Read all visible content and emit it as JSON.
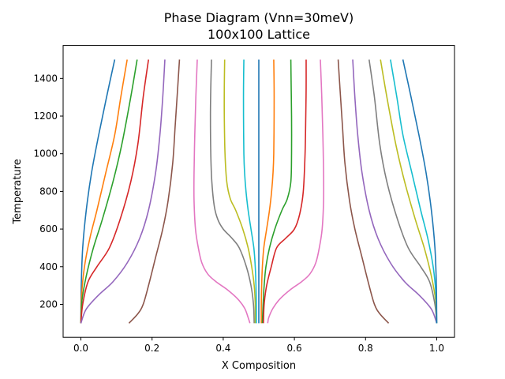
{
  "chart_data": {
    "type": "line",
    "title": "Phase Diagram (Vnn=30meV)",
    "subtitle": "100x100 Lattice",
    "xlabel": "X Composition",
    "ylabel": "Temperature",
    "xlim": [
      -0.05,
      1.05
    ],
    "ylim": [
      25,
      1575
    ],
    "xticks": [
      0.0,
      0.2,
      0.4,
      0.6,
      0.8,
      1.0
    ],
    "xtick_labels": [
      "0.0",
      "0.2",
      "0.4",
      "0.6",
      "0.8",
      "1.0"
    ],
    "yticks": [
      200,
      400,
      600,
      800,
      1000,
      1200,
      1400
    ],
    "ytick_labels": [
      "200",
      "400",
      "600",
      "800",
      "1000",
      "1200",
      "1400"
    ],
    "grid": false,
    "series": [
      {
        "color": "#1f77b4",
        "points": [
          [
            0.0,
            100
          ],
          [
            0.001,
            300
          ],
          [
            0.005,
            500
          ],
          [
            0.015,
            700
          ],
          [
            0.03,
            900
          ],
          [
            0.05,
            1100
          ],
          [
            0.072,
            1300
          ],
          [
            0.095,
            1500
          ]
        ]
      },
      {
        "color": "#ff7f0e",
        "points": [
          [
            0.0,
            100
          ],
          [
            0.002,
            250
          ],
          [
            0.01,
            400
          ],
          [
            0.025,
            550
          ],
          [
            0.045,
            700
          ],
          [
            0.07,
            900
          ],
          [
            0.095,
            1100
          ],
          [
            0.112,
            1300
          ],
          [
            0.13,
            1500
          ]
        ]
      },
      {
        "color": "#2ca02c",
        "points": [
          [
            0.0,
            100
          ],
          [
            0.003,
            220
          ],
          [
            0.015,
            350
          ],
          [
            0.035,
            500
          ],
          [
            0.06,
            650
          ],
          [
            0.09,
            850
          ],
          [
            0.115,
            1050
          ],
          [
            0.14,
            1300
          ],
          [
            0.158,
            1500
          ]
        ]
      },
      {
        "color": "#d62728",
        "points": [
          [
            0.0,
            100
          ],
          [
            0.005,
            200
          ],
          [
            0.02,
            320
          ],
          [
            0.045,
            400
          ],
          [
            0.08,
            500
          ],
          [
            0.11,
            650
          ],
          [
            0.14,
            850
          ],
          [
            0.16,
            1050
          ],
          [
            0.175,
            1300
          ],
          [
            0.19,
            1500
          ]
        ]
      },
      {
        "color": "#9467bd",
        "points": [
          [
            0.0,
            100
          ],
          [
            0.015,
            175
          ],
          [
            0.05,
            250
          ],
          [
            0.09,
            320
          ],
          [
            0.13,
            420
          ],
          [
            0.165,
            550
          ],
          [
            0.19,
            700
          ],
          [
            0.21,
            900
          ],
          [
            0.222,
            1100
          ],
          [
            0.23,
            1300
          ],
          [
            0.236,
            1500
          ]
        ]
      },
      {
        "color": "#8c564b",
        "points": [
          [
            0.135,
            100
          ],
          [
            0.16,
            150
          ],
          [
            0.175,
            200
          ],
          [
            0.19,
            300
          ],
          [
            0.21,
            450
          ],
          [
            0.23,
            600
          ],
          [
            0.245,
            750
          ],
          [
            0.258,
            950
          ],
          [
            0.265,
            1150
          ],
          [
            0.272,
            1350
          ],
          [
            0.277,
            1500
          ]
        ]
      },
      {
        "color": "#e377c2",
        "points": [
          [
            0.475,
            100
          ],
          [
            0.47,
            130
          ],
          [
            0.46,
            180
          ],
          [
            0.44,
            230
          ],
          [
            0.41,
            280
          ],
          [
            0.38,
            320
          ],
          [
            0.357,
            360
          ],
          [
            0.34,
            420
          ],
          [
            0.33,
            500
          ],
          [
            0.322,
            600
          ],
          [
            0.318,
            750
          ],
          [
            0.318,
            900
          ],
          [
            0.32,
            1100
          ],
          [
            0.323,
            1300
          ],
          [
            0.327,
            1500
          ]
        ]
      },
      {
        "color": "#7f7f7f",
        "points": [
          [
            0.487,
            100
          ],
          [
            0.485,
            200
          ],
          [
            0.478,
            300
          ],
          [
            0.465,
            400
          ],
          [
            0.445,
            500
          ],
          [
            0.425,
            550
          ],
          [
            0.4,
            600
          ],
          [
            0.385,
            650
          ],
          [
            0.375,
            720
          ],
          [
            0.368,
            850
          ],
          [
            0.365,
            1000
          ],
          [
            0.364,
            1200
          ],
          [
            0.365,
            1350
          ],
          [
            0.367,
            1500
          ]
        ]
      },
      {
        "color": "#bcbd22",
        "points": [
          [
            0.49,
            100
          ],
          [
            0.49,
            200
          ],
          [
            0.487,
            300
          ],
          [
            0.48,
            400
          ],
          [
            0.47,
            500
          ],
          [
            0.455,
            600
          ],
          [
            0.435,
            700
          ],
          [
            0.42,
            760
          ],
          [
            0.41,
            850
          ],
          [
            0.405,
            1000
          ],
          [
            0.403,
            1200
          ],
          [
            0.403,
            1350
          ],
          [
            0.404,
            1500
          ]
        ]
      },
      {
        "color": "#17becf",
        "points": [
          [
            0.493,
            100
          ],
          [
            0.493,
            200
          ],
          [
            0.492,
            300
          ],
          [
            0.49,
            400
          ],
          [
            0.486,
            500
          ],
          [
            0.478,
            600
          ],
          [
            0.47,
            700
          ],
          [
            0.464,
            800
          ],
          [
            0.46,
            900
          ],
          [
            0.458,
            1000
          ],
          [
            0.457,
            1200
          ],
          [
            0.457,
            1350
          ],
          [
            0.458,
            1500
          ]
        ]
      },
      {
        "color": "#1f77b4",
        "points": [
          [
            0.5,
            100
          ],
          [
            0.5,
            1500
          ]
        ]
      },
      {
        "color": "#ff7f0e",
        "points": [
          [
            0.507,
            100
          ],
          [
            0.507,
            200
          ],
          [
            0.508,
            300
          ],
          [
            0.51,
            400
          ],
          [
            0.514,
            500
          ],
          [
            0.522,
            600
          ],
          [
            0.53,
            700
          ],
          [
            0.536,
            800
          ],
          [
            0.54,
            900
          ],
          [
            0.542,
            1000
          ],
          [
            0.543,
            1200
          ],
          [
            0.543,
            1350
          ],
          [
            0.542,
            1500
          ]
        ]
      },
      {
        "color": "#2ca02c",
        "points": [
          [
            0.51,
            100
          ],
          [
            0.512,
            200
          ],
          [
            0.515,
            300
          ],
          [
            0.52,
            400
          ],
          [
            0.53,
            500
          ],
          [
            0.545,
            600
          ],
          [
            0.565,
            700
          ],
          [
            0.58,
            760
          ],
          [
            0.59,
            850
          ],
          [
            0.592,
            1000
          ],
          [
            0.592,
            1200
          ],
          [
            0.591,
            1350
          ],
          [
            0.59,
            1500
          ]
        ]
      },
      {
        "color": "#d62728",
        "points": [
          [
            0.513,
            100
          ],
          [
            0.515,
            200
          ],
          [
            0.522,
            300
          ],
          [
            0.535,
            400
          ],
          [
            0.55,
            500
          ],
          [
            0.575,
            550
          ],
          [
            0.6,
            600
          ],
          [
            0.615,
            680
          ],
          [
            0.625,
            800
          ],
          [
            0.63,
            1000
          ],
          [
            0.632,
            1200
          ],
          [
            0.633,
            1350
          ],
          [
            0.633,
            1500
          ]
        ]
      },
      {
        "color": "#e377c2",
        "points": [
          [
            0.525,
            100
          ],
          [
            0.528,
            130
          ],
          [
            0.54,
            180
          ],
          [
            0.56,
            230
          ],
          [
            0.59,
            280
          ],
          [
            0.62,
            320
          ],
          [
            0.643,
            360
          ],
          [
            0.66,
            420
          ],
          [
            0.67,
            500
          ],
          [
            0.678,
            600
          ],
          [
            0.682,
            750
          ],
          [
            0.682,
            900
          ],
          [
            0.68,
            1100
          ],
          [
            0.677,
            1300
          ],
          [
            0.673,
            1500
          ]
        ]
      },
      {
        "color": "#8c564b",
        "points": [
          [
            0.865,
            100
          ],
          [
            0.84,
            150
          ],
          [
            0.825,
            200
          ],
          [
            0.81,
            300
          ],
          [
            0.79,
            450
          ],
          [
            0.77,
            600
          ],
          [
            0.755,
            750
          ],
          [
            0.742,
            950
          ],
          [
            0.735,
            1150
          ],
          [
            0.728,
            1350
          ],
          [
            0.723,
            1500
          ]
        ]
      },
      {
        "color": "#9467bd",
        "points": [
          [
            1.0,
            100
          ],
          [
            0.985,
            175
          ],
          [
            0.95,
            250
          ],
          [
            0.91,
            320
          ],
          [
            0.87,
            420
          ],
          [
            0.835,
            550
          ],
          [
            0.81,
            700
          ],
          [
            0.79,
            900
          ],
          [
            0.778,
            1100
          ],
          [
            0.77,
            1300
          ],
          [
            0.764,
            1500
          ]
        ]
      },
      {
        "color": "#7f7f7f",
        "points": [
          [
            1.0,
            100
          ],
          [
            0.995,
            200
          ],
          [
            0.98,
            320
          ],
          [
            0.955,
            400
          ],
          [
            0.92,
            500
          ],
          [
            0.89,
            650
          ],
          [
            0.86,
            850
          ],
          [
            0.84,
            1050
          ],
          [
            0.825,
            1300
          ],
          [
            0.81,
            1500
          ]
        ]
      },
      {
        "color": "#bcbd22",
        "points": [
          [
            1.0,
            100
          ],
          [
            0.997,
            220
          ],
          [
            0.985,
            350
          ],
          [
            0.965,
            500
          ],
          [
            0.94,
            650
          ],
          [
            0.91,
            850
          ],
          [
            0.885,
            1050
          ],
          [
            0.86,
            1300
          ],
          [
            0.842,
            1500
          ]
        ]
      },
      {
        "color": "#17becf",
        "points": [
          [
            1.0,
            100
          ],
          [
            0.998,
            250
          ],
          [
            0.99,
            400
          ],
          [
            0.975,
            550
          ],
          [
            0.955,
            700
          ],
          [
            0.93,
            900
          ],
          [
            0.905,
            1100
          ],
          [
            0.888,
            1300
          ],
          [
            0.87,
            1500
          ]
        ]
      },
      {
        "color": "#1f77b4",
        "points": [
          [
            1.0,
            100
          ],
          [
            0.999,
            300
          ],
          [
            0.995,
            500
          ],
          [
            0.985,
            700
          ],
          [
            0.97,
            900
          ],
          [
            0.95,
            1100
          ],
          [
            0.928,
            1300
          ],
          [
            0.905,
            1500
          ]
        ]
      }
    ]
  }
}
